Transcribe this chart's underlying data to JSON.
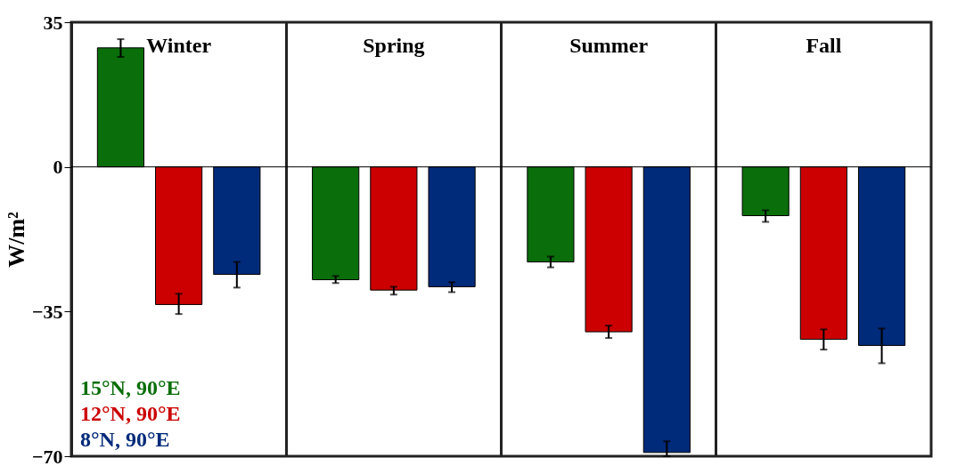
{
  "chart_data": {
    "type": "bar",
    "ylabel": "W/m²",
    "categories": [
      "Winter",
      "Spring",
      "Summer",
      "Fall"
    ],
    "ylim": [
      -70,
      35
    ],
    "yticks": [
      35,
      0,
      -35,
      -70
    ],
    "legend": "bottom left",
    "grid": false,
    "ref_lines": [
      {
        "axis": "y",
        "value": 0
      }
    ],
    "series": [
      {
        "name": "15°N, 90°E",
        "color": "#0a6e0a",
        "values": [
          28.8,
          -27.3,
          -23.0,
          -11.8
        ],
        "errors": [
          [
            26.6,
            30.9
          ],
          [
            -28.1,
            -26.4
          ],
          [
            -24.3,
            -21.7
          ],
          [
            -13.3,
            -10.5
          ]
        ]
      },
      {
        "name": "12°N, 90°E",
        "color": "#cc0000",
        "values": [
          -33.3,
          -29.8,
          -39.9,
          -41.7
        ],
        "errors": [
          [
            -35.6,
            -30.7
          ],
          [
            -30.9,
            -29.0
          ],
          [
            -41.4,
            -38.4
          ],
          [
            -44.2,
            -39.3
          ]
        ]
      },
      {
        "name": "8°N, 90°E",
        "color": "#002a7a",
        "values": [
          -26.0,
          -29.0,
          -69.1,
          -43.2
        ],
        "errors": [
          [
            -29.2,
            -23.0
          ],
          [
            -30.3,
            -27.9
          ],
          [
            -70.0,
            -66.4
          ],
          [
            -47.5,
            -39.1
          ]
        ]
      }
    ]
  }
}
